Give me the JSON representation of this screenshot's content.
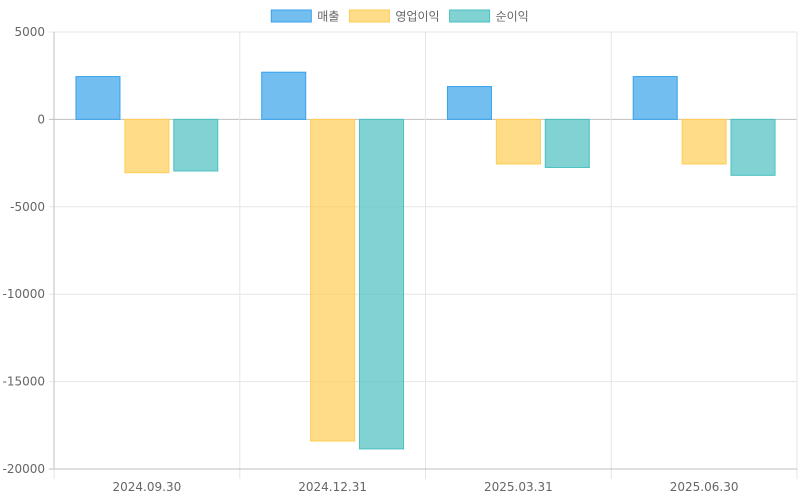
{
  "chart_data": {
    "type": "bar",
    "categories": [
      "2024.09.30",
      "2024.12.31",
      "2025.03.31",
      "2025.06.30"
    ],
    "series": [
      {
        "name": "매출",
        "values": [
          2450,
          2700,
          1880,
          2450
        ],
        "fill": "rgba(54,162,235,0.7)",
        "stroke": "#36a2eb"
      },
      {
        "name": "영업이익",
        "values": [
          -3050,
          -18400,
          -2550,
          -2550
        ],
        "fill": "rgba(255,205,86,0.7)",
        "stroke": "#ffcd56"
      },
      {
        "name": "순이익",
        "values": [
          -2950,
          -18850,
          -2750,
          -3200
        ],
        "fill": "rgba(75,192,192,0.7)",
        "stroke": "#4bc0c0"
      }
    ],
    "yticks": [
      5000,
      0,
      -5000,
      -10000,
      -15000,
      -20000
    ],
    "ylim": [
      -20000,
      5000
    ],
    "grid": true,
    "legend_position": "top-center",
    "colors": {
      "grid": "#e6e6e6",
      "axis": "#bfbfbf",
      "text": "#666666"
    }
  }
}
